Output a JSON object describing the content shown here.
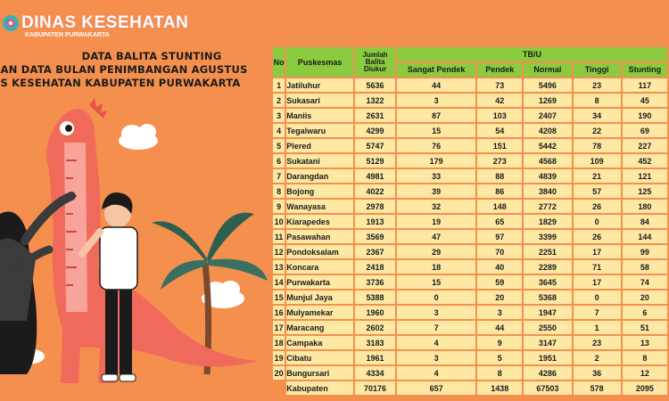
{
  "logo": {
    "title": "DINAS KESEHATAN",
    "subtitle": "KABUPATEN PURWAKARTA"
  },
  "heading": {
    "line1": "DATA BALITA STUNTING",
    "line2": "RKAN DATA BULAN PENIMBANGAN AGUSTUS",
    "line3": "S KESEHATAN KABUPATEN PURWAKARTA"
  },
  "table": {
    "headers": {
      "no": "No",
      "puskesmas": "Puskesmas",
      "jumlah": "Jumlah Balita Diukur",
      "group": "TB/U",
      "sangat_pendek": "Sangat Pendek",
      "pendek": "Pendek",
      "normal": "Normal",
      "tinggi": "Tinggi",
      "stunting": "Stunting"
    },
    "rows": [
      {
        "no": "1",
        "name": "Jatiluhur",
        "jumlah": "5636",
        "sp": "44",
        "p": "73",
        "n": "5496",
        "t": "23",
        "s": "117"
      },
      {
        "no": "2",
        "name": "Sukasari",
        "jumlah": "1322",
        "sp": "3",
        "p": "42",
        "n": "1269",
        "t": "8",
        "s": "45"
      },
      {
        "no": "3",
        "name": "Maniis",
        "jumlah": "2631",
        "sp": "87",
        "p": "103",
        "n": "2407",
        "t": "34",
        "s": "190"
      },
      {
        "no": "4",
        "name": "Tegalwaru",
        "jumlah": "4299",
        "sp": "15",
        "p": "54",
        "n": "4208",
        "t": "22",
        "s": "69"
      },
      {
        "no": "5",
        "name": "Plered",
        "jumlah": "5747",
        "sp": "76",
        "p": "151",
        "n": "5442",
        "t": "78",
        "s": "227"
      },
      {
        "no": "6",
        "name": "Sukatani",
        "jumlah": "5129",
        "sp": "179",
        "p": "273",
        "n": "4568",
        "t": "109",
        "s": "452"
      },
      {
        "no": "7",
        "name": "Darangdan",
        "jumlah": "4981",
        "sp": "33",
        "p": "88",
        "n": "4839",
        "t": "21",
        "s": "121"
      },
      {
        "no": "8",
        "name": "Bojong",
        "jumlah": "4022",
        "sp": "39",
        "p": "86",
        "n": "3840",
        "t": "57",
        "s": "125"
      },
      {
        "no": "9",
        "name": "Wanayasa",
        "jumlah": "2978",
        "sp": "32",
        "p": "148",
        "n": "2772",
        "t": "26",
        "s": "180"
      },
      {
        "no": "10",
        "name": "Kiarapedes",
        "jumlah": "1913",
        "sp": "19",
        "p": "65",
        "n": "1829",
        "t": "0",
        "s": "84"
      },
      {
        "no": "11",
        "name": "Pasawahan",
        "jumlah": "3569",
        "sp": "47",
        "p": "97",
        "n": "3399",
        "t": "26",
        "s": "144"
      },
      {
        "no": "12",
        "name": "Pondoksalam",
        "jumlah": "2367",
        "sp": "29",
        "p": "70",
        "n": "2251",
        "t": "17",
        "s": "99"
      },
      {
        "no": "13",
        "name": "Koncara",
        "jumlah": "2418",
        "sp": "18",
        "p": "40",
        "n": "2289",
        "t": "71",
        "s": "58"
      },
      {
        "no": "14",
        "name": "Purwakarta",
        "jumlah": "3736",
        "sp": "15",
        "p": "59",
        "n": "3645",
        "t": "17",
        "s": "74"
      },
      {
        "no": "15",
        "name": "Munjul Jaya",
        "jumlah": "5388",
        "sp": "0",
        "p": "20",
        "n": "5368",
        "t": "0",
        "s": "20"
      },
      {
        "no": "16",
        "name": "Mulyamekar",
        "jumlah": "1960",
        "sp": "3",
        "p": "3",
        "n": "1947",
        "t": "7",
        "s": "6"
      },
      {
        "no": "17",
        "name": "Maracang",
        "jumlah": "2602",
        "sp": "7",
        "p": "44",
        "n": "2550",
        "t": "1",
        "s": "51"
      },
      {
        "no": "18",
        "name": "Campaka",
        "jumlah": "3183",
        "sp": "4",
        "p": "9",
        "n": "3147",
        "t": "23",
        "s": "13"
      },
      {
        "no": "19",
        "name": "Cibatu",
        "jumlah": "1961",
        "sp": "3",
        "p": "5",
        "n": "1951",
        "t": "2",
        "s": "8"
      },
      {
        "no": "20",
        "name": "Bungursari",
        "jumlah": "4334",
        "sp": "4",
        "p": "8",
        "n": "4286",
        "t": "36",
        "s": "12"
      }
    ],
    "total": {
      "name": "Kabupaten",
      "jumlah": "70176",
      "sp": "657",
      "p": "1438",
      "n": "67503",
      "t": "578",
      "s": "2095"
    }
  },
  "colors": {
    "background": "#F58F4E",
    "header_green": "#8BCB3F",
    "cell_cream": "#FFE8A3",
    "logo_pink": "#D45E8A",
    "logo_teal": "#2FB5B5"
  }
}
